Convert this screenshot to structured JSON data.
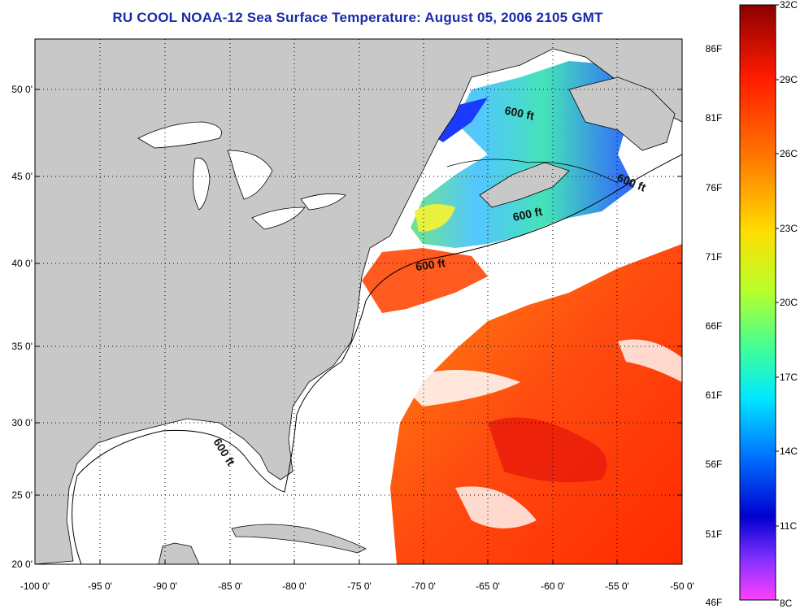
{
  "title": "RU COOL  NOAA-12  Sea Surface Temperature:  August 05, 2006 2105 GMT",
  "map": {
    "lat_labels": [
      "50 0'",
      "45 0'",
      "40 0'",
      "35 0'",
      "30 0'",
      "25 0'",
      "20 0'"
    ],
    "lon_labels": [
      "-100 0'",
      "-95 0'",
      "-90 0'",
      "-85 0'",
      "-80 0'",
      "-75 0'",
      "-70 0'",
      "-65 0'",
      "-60 0'",
      "-55 0'",
      "-50 0'"
    ],
    "contour_label": "600 ft",
    "land_color": "#c8c8c8",
    "cloud_color": "#ffffff"
  },
  "colorbar": {
    "celsius": [
      "32C",
      "29C",
      "26C",
      "23C",
      "20C",
      "17C",
      "14C",
      "11C",
      "8C"
    ],
    "fahrenheit": [
      "86F",
      "81F",
      "76F",
      "71F",
      "66F",
      "61F",
      "56F",
      "51F",
      "46F"
    ],
    "stops": [
      "#8b0000",
      "#ff1a00",
      "#ff7a00",
      "#ffdd00",
      "#b8ff2a",
      "#3dff9a",
      "#00e8ff",
      "#0070ff",
      "#0000d0",
      "#8030ff",
      "#ff40ff"
    ]
  }
}
